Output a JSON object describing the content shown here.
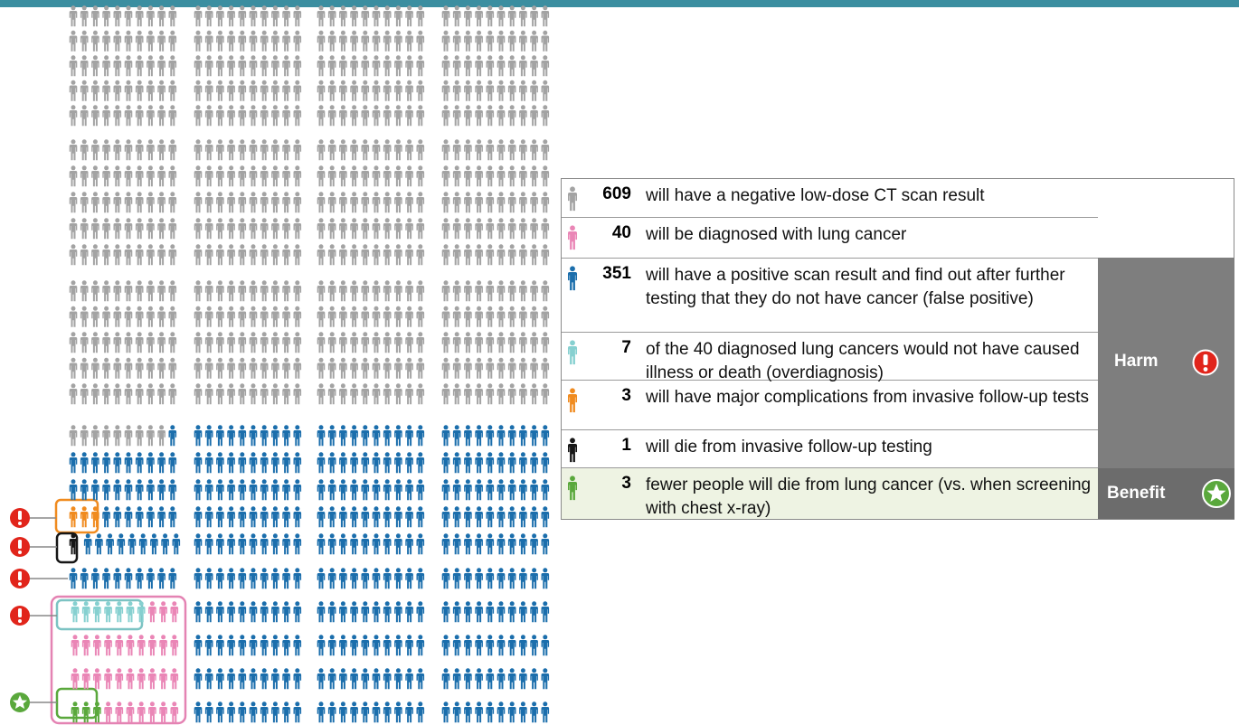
{
  "rows": [
    {
      "count": 609,
      "text": "will have a negative low-dose CT scan result",
      "color": "#a3a3a3"
    },
    {
      "count": 40,
      "text": "will be diagnosed with lung cancer",
      "color": "#ea86b6"
    },
    {
      "count": 351,
      "text": "will have a positive scan result and find out after further testing that they do not have cancer (false positive)",
      "color": "#1b6eac"
    },
    {
      "count": 7,
      "text": "of the 40 diagnosed lung cancers would not have caused illness or death (overdiagnosis)",
      "color": "#86d0d0"
    },
    {
      "count": 3,
      "text": "will have major complications from invasive follow-up tests",
      "color": "#f08b1f"
    },
    {
      "count": 1,
      "text": "will die from invasive follow-up testing",
      "color": "#161616"
    },
    {
      "count": 3,
      "text": "fewer people will die from lung cancer (vs. when screening with chest x-ray)",
      "color": "#5aa83c"
    }
  ],
  "harm_label": "Harm",
  "benefit_label": "Benefit"
}
